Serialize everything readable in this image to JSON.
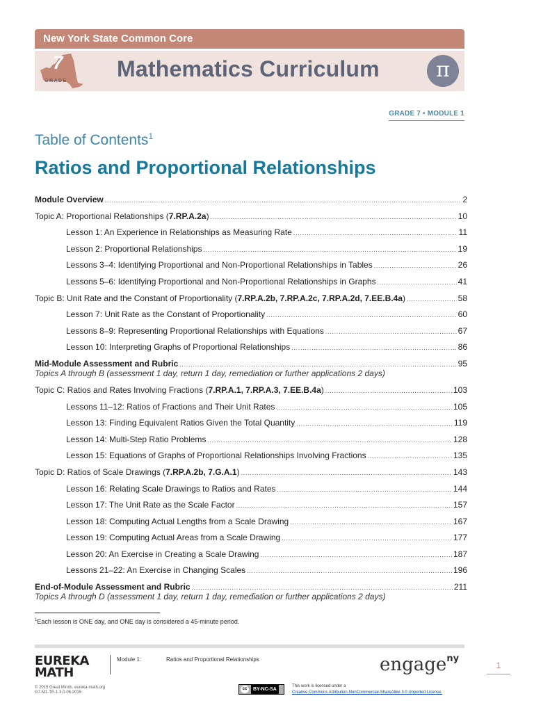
{
  "header": {
    "banner": "New York State Common Core",
    "grade_number": "7",
    "grade_label": "GRADE",
    "title": "Mathematics Curriculum",
    "pi_symbol": "π",
    "grade_module": "GRADE 7 • MODULE 1",
    "colors": {
      "banner": "#c48675",
      "banner_bg": "#f0e3df",
      "title": "#5d6478",
      "accent_blue": "#16799c"
    }
  },
  "toc": {
    "heading": "Table of Contents",
    "heading_sup": "1",
    "module_title": "Ratios and Proportional Relationships",
    "entries": [
      {
        "type": "section",
        "text": "Module Overview",
        "page": "2"
      },
      {
        "type": "topic",
        "text": "Topic A:  Proportional Relationships (",
        "std": "7.RP.A.2a",
        "tail": ")",
        "page": "10"
      },
      {
        "type": "lesson",
        "text": "Lesson 1:  An Experience in Relationships as Measuring Rate",
        "page": "11"
      },
      {
        "type": "lesson",
        "text": "Lesson 2:  Proportional Relationships",
        "page": "19"
      },
      {
        "type": "lesson",
        "text": "Lessons 3–4:  Identifying Proportional and Non-Proportional Relationships in Tables",
        "page": "26"
      },
      {
        "type": "lesson",
        "text": "Lessons 5–6:  Identifying Proportional and Non-Proportional Relationships in Graphs",
        "page": "41"
      },
      {
        "type": "topic",
        "text": "Topic B:  Unit Rate and the Constant of Proportionality (",
        "std": "7.RP.A.2b, 7.RP.A.2c, 7.RP.A.2d, 7.EE.B.4a",
        "tail": ")",
        "page": "58"
      },
      {
        "type": "lesson",
        "text": "Lesson 7:  Unit Rate as the Constant of Proportionality",
        "page": "60"
      },
      {
        "type": "lesson",
        "text": "Lessons 8–9:  Representing Proportional Relationships with Equations",
        "page": "67"
      },
      {
        "type": "lesson",
        "text": "Lesson 10:  Interpreting Graphs of Proportional Relationships",
        "page": "86"
      },
      {
        "type": "section",
        "text": "Mid-Module Assessment and Rubric",
        "page": "95"
      },
      {
        "type": "note",
        "text": "Topics A through B (assessment 1 day, return 1 day, remediation or further applications 2 days)"
      },
      {
        "type": "topic",
        "text": "Topic C:  Ratios and Rates Involving Fractions (",
        "std": "7.RP.A.1, 7.RP.A.3, 7.EE.B.4a",
        "tail": ")",
        "page": "103"
      },
      {
        "type": "lesson",
        "text": "Lessons 11–12:  Ratios of Fractions and Their Unit Rates",
        "page": "105"
      },
      {
        "type": "lesson",
        "text": "Lesson 13:  Finding Equivalent Ratios Given the Total Quantity",
        "page": "119"
      },
      {
        "type": "lesson",
        "text": "Lesson 14:  Multi-Step Ratio Problems",
        "page": "128"
      },
      {
        "type": "lesson",
        "text": "Lesson 15:  Equations of Graphs of Proportional Relationships Involving Fractions",
        "page": "135"
      },
      {
        "type": "topic",
        "text": "Topic D:  Ratios of Scale Drawings (",
        "std": "7.RP.A.2b, 7.G.A.1",
        "tail": ")",
        "page": "143"
      },
      {
        "type": "lesson",
        "text": "Lesson 16:  Relating Scale Drawings to Ratios and Rates",
        "page": "144"
      },
      {
        "type": "lesson",
        "text": "Lesson 17:  The Unit Rate as the Scale Factor",
        "page": "157"
      },
      {
        "type": "lesson",
        "text": "Lesson 18:  Computing Actual Lengths from a Scale Drawing",
        "page": "167"
      },
      {
        "type": "lesson",
        "text": "Lesson 19:  Computing Actual Areas from a Scale Drawing",
        "page": "177"
      },
      {
        "type": "lesson",
        "text": "Lesson 20:  An Exercise in Creating a Scale Drawing",
        "page": "187"
      },
      {
        "type": "lesson",
        "text": "Lessons 21–22:  An Exercise in Changing Scales",
        "page": "196"
      },
      {
        "type": "section",
        "text": "End-of-Module Assessment and Rubric",
        "page": "211"
      },
      {
        "type": "note",
        "text": "Topics A through D (assessment 1 day, return 1 day, remediation or further applications 2 days)"
      }
    ]
  },
  "footnote": {
    "marker": "1",
    "text": "Each lesson is ONE day, and ONE day is considered a 45-minute period."
  },
  "footer": {
    "logo_line1": "EUREKA",
    "logo_line2": "MATH",
    "module_label": "Module 1:",
    "module_title": "Ratios and Proportional Relationships",
    "engage": "engage",
    "engage_sup": "ny",
    "page_number": "1",
    "copyright": "© 2015 Great Minds. eureka-math.org",
    "doc_code": "G7-M1-TE-1.3.0-06.2015",
    "cc_icon": "cc",
    "cc_label": "BY-NC-SA",
    "license_intro": "This work is licensed under a",
    "license_link": "Creative Commons Attribution-NonCommercial-ShareAlike 3.0 Unported License."
  }
}
